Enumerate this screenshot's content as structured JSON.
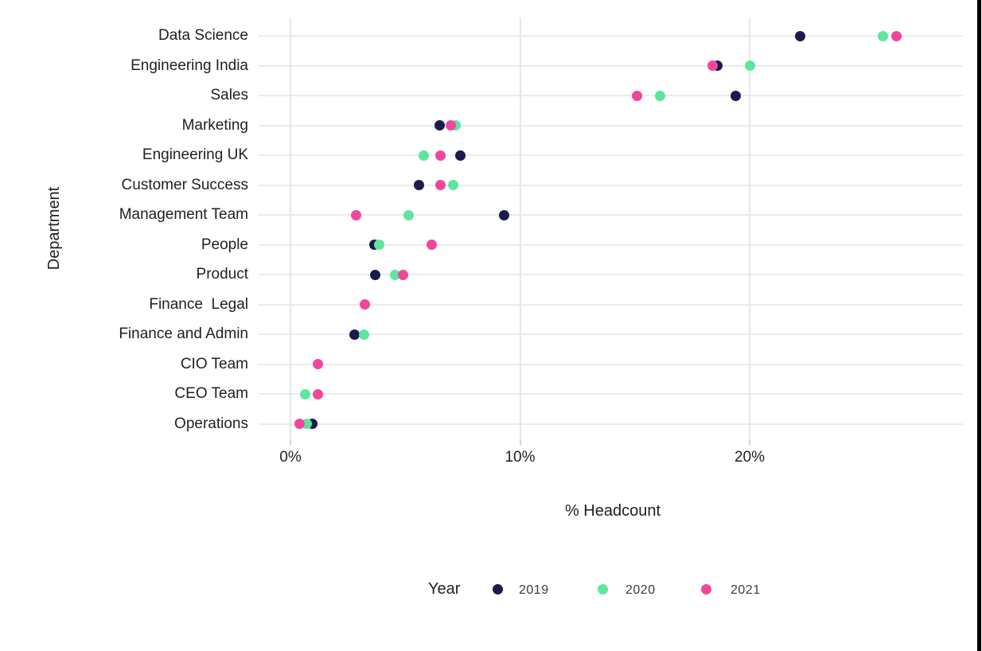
{
  "chart_data": {
    "type": "scatter",
    "variant": "horizontal-dot-plot",
    "title": "",
    "xlabel": "% Headcount",
    "ylabel": "Department",
    "xlim": [
      -1,
      29.3
    ],
    "x_ticks": [
      {
        "label": "0%",
        "value": 0
      },
      {
        "label": "10%",
        "value": 10
      },
      {
        "label": "20%",
        "value": 20
      }
    ],
    "grid": "major-only",
    "categories": [
      "Data Science",
      "Engineering India",
      "Sales",
      "Marketing",
      "Engineering UK",
      "Customer Success",
      "Management Team",
      "People",
      "Product",
      "Finance  Legal",
      "Finance and Admin",
      "CIO Team",
      "CEO Team",
      "Operations"
    ],
    "series": [
      {
        "name": "2019",
        "color": "#1b1b4d",
        "values": [
          22.2,
          18.6,
          19.4,
          6.5,
          7.4,
          5.6,
          9.3,
          3.65,
          3.7,
          null,
          2.8,
          null,
          null,
          0.95
        ]
      },
      {
        "name": "2020",
        "color": "#5ee69e",
        "values": [
          25.8,
          20.0,
          16.1,
          7.2,
          5.8,
          7.1,
          5.15,
          3.85,
          4.55,
          null,
          3.2,
          null,
          0.65,
          0.7
        ]
      },
      {
        "name": "2021",
        "color": "#f0479c",
        "values": [
          26.4,
          18.4,
          15.1,
          7.0,
          6.55,
          6.55,
          2.85,
          6.15,
          4.9,
          3.25,
          null,
          1.2,
          1.2,
          0.4
        ]
      }
    ],
    "legend": {
      "title": "Year",
      "position": "bottom",
      "entries": [
        {
          "label": "2019",
          "color": "#1b1b4d"
        },
        {
          "label": "2020",
          "color": "#5ee69e"
        },
        {
          "label": "2021",
          "color": "#f0479c"
        }
      ]
    }
  },
  "colors": {
    "background": "#ffffff",
    "gridline": "#ebebeb",
    "axis_text": "#1f1f1f",
    "legend_text": "#3c3c3c",
    "right_border": "#000000"
  }
}
